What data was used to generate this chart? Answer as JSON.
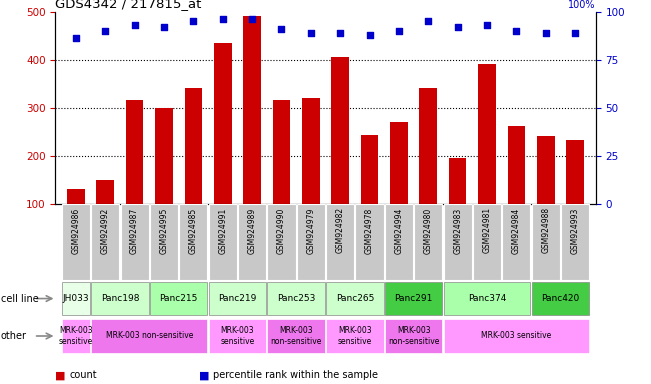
{
  "title": "GDS4342 / 217815_at",
  "samples": [
    "GSM924986",
    "GSM924992",
    "GSM924987",
    "GSM924995",
    "GSM924985",
    "GSM924991",
    "GSM924989",
    "GSM924990",
    "GSM924979",
    "GSM924982",
    "GSM924978",
    "GSM924994",
    "GSM924980",
    "GSM924983",
    "GSM924981",
    "GSM924984",
    "GSM924988",
    "GSM924993"
  ],
  "counts": [
    130,
    150,
    315,
    300,
    340,
    435,
    490,
    315,
    320,
    405,
    242,
    270,
    340,
    195,
    390,
    262,
    240,
    232
  ],
  "percentiles": [
    86,
    90,
    93,
    92,
    95,
    96,
    96,
    91,
    89,
    89,
    88,
    90,
    95,
    92,
    93,
    90,
    89,
    89
  ],
  "cell_lines": [
    {
      "label": "JH033",
      "start": 0,
      "end": 1,
      "color": "#e8ffe8"
    },
    {
      "label": "Panc198",
      "start": 1,
      "end": 3,
      "color": "#ccffcc"
    },
    {
      "label": "Panc215",
      "start": 3,
      "end": 5,
      "color": "#aaffaa"
    },
    {
      "label": "Panc219",
      "start": 5,
      "end": 7,
      "color": "#ccffcc"
    },
    {
      "label": "Panc253",
      "start": 7,
      "end": 9,
      "color": "#ccffcc"
    },
    {
      "label": "Panc265",
      "start": 9,
      "end": 11,
      "color": "#ccffcc"
    },
    {
      "label": "Panc291",
      "start": 11,
      "end": 13,
      "color": "#44cc44"
    },
    {
      "label": "Panc374",
      "start": 13,
      "end": 16,
      "color": "#aaffaa"
    },
    {
      "label": "Panc420",
      "start": 16,
      "end": 18,
      "color": "#44cc44"
    }
  ],
  "other_rows": [
    {
      "label": "MRK-003\nsensitive",
      "start": 0,
      "end": 1,
      "color": "#ff99ff"
    },
    {
      "label": "MRK-003 non-sensitive",
      "start": 1,
      "end": 5,
      "color": "#ee77ee"
    },
    {
      "label": "MRK-003\nsensitive",
      "start": 5,
      "end": 7,
      "color": "#ff99ff"
    },
    {
      "label": "MRK-003\nnon-sensitive",
      "start": 7,
      "end": 9,
      "color": "#ee77ee"
    },
    {
      "label": "MRK-003\nsensitive",
      "start": 9,
      "end": 11,
      "color": "#ff99ff"
    },
    {
      "label": "MRK-003\nnon-sensitive",
      "start": 11,
      "end": 13,
      "color": "#ee77ee"
    },
    {
      "label": "MRK-003 sensitive",
      "start": 13,
      "end": 18,
      "color": "#ff99ff"
    }
  ],
  "ylim_left": [
    100,
    500
  ],
  "ylim_right": [
    0,
    100
  ],
  "yticks_left": [
    100,
    200,
    300,
    400,
    500
  ],
  "yticks_right": [
    0,
    25,
    50,
    75,
    100
  ],
  "bar_color": "#cc0000",
  "scatter_color": "#0000cc",
  "xticklabel_bg": "#c8c8c8",
  "legend_items": [
    {
      "label": "count",
      "color": "#cc0000"
    },
    {
      "label": "percentile rank within the sample",
      "color": "#0000cc"
    }
  ]
}
